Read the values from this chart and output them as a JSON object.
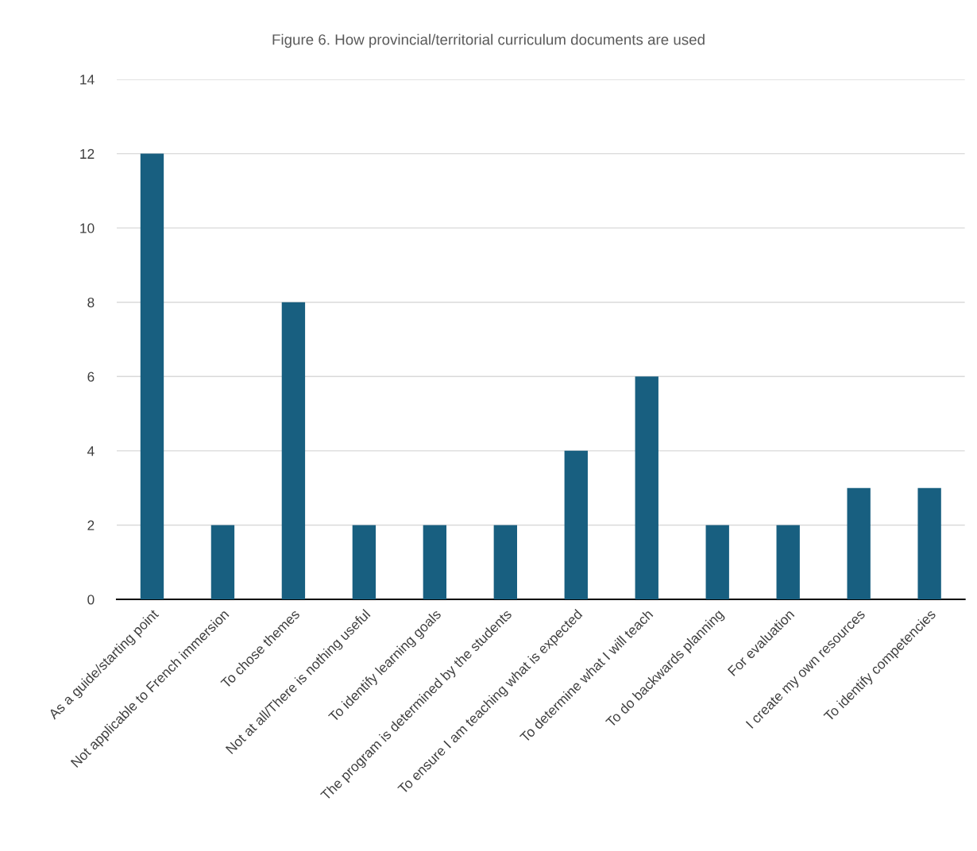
{
  "chart_data": {
    "type": "bar",
    "title": "Figure 6. How provincial/territorial curriculum documents are used",
    "categories": [
      "As a guide/starting point",
      "Not applicable to French immersion",
      "To chose themes",
      "Not at all/There is nothing useful",
      "To identify learning goals",
      "The program is determined by the students",
      "To ensure I am teaching what is expected",
      "To determine what I will teach",
      "To do backwards planning",
      "For evaluation",
      "I create my own resources",
      "To identify competencies"
    ],
    "values": [
      12,
      2,
      8,
      2,
      2,
      2,
      4,
      6,
      2,
      2,
      3,
      3
    ],
    "color": "#185f80",
    "ylim": [
      0,
      14
    ],
    "yticks": [
      0,
      2,
      4,
      6,
      8,
      10,
      12,
      14
    ],
    "grid": "y",
    "legend": false
  }
}
